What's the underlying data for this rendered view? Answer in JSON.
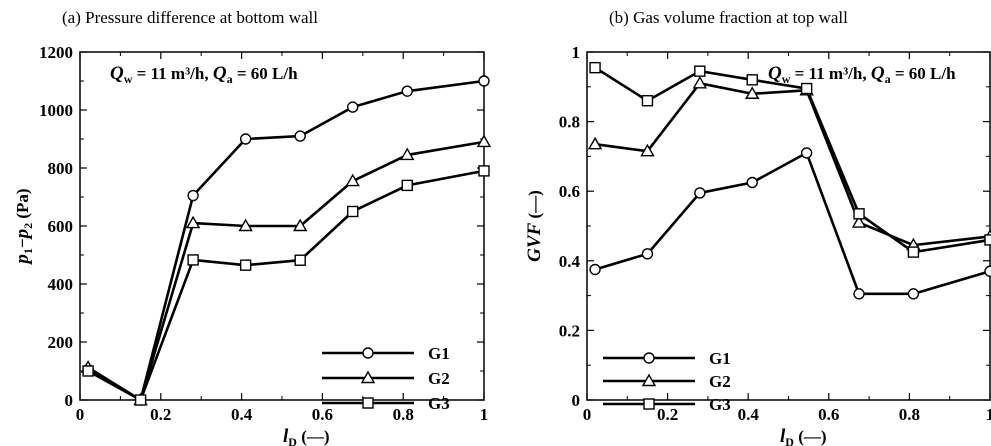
{
  "chart_data": [
    {
      "panel": "a",
      "type": "line",
      "title": "(a) Pressure difference at bottom wall",
      "annotation": {
        "q": "Q",
        "q_sub": "w",
        "q_rest": " = 11 m³/h, ",
        "q2": "Q",
        "q2_sub": "a",
        "q2_rest": " = 60 L/h"
      },
      "xlabel": {
        "main": "l",
        "sub": "D",
        "rest": " (—)"
      },
      "ylabel": {
        "p1": "p",
        "sub1": "1",
        "mid": "−",
        "p2": "p",
        "sub2": "2",
        "rest": " (Pa)"
      },
      "xlim": [
        0,
        1
      ],
      "ylim": [
        0,
        1200
      ],
      "xticks": [
        0,
        0.2,
        0.4,
        0.6,
        0.8,
        1
      ],
      "xtick_labels": [
        "0",
        "0.2",
        "0.4",
        "0.6",
        "0.8",
        "1"
      ],
      "yticks": [
        0,
        200,
        400,
        600,
        800,
        1000,
        1200
      ],
      "ytick_labels": [
        "0",
        "200",
        "400",
        "600",
        "800",
        "1000",
        "1200"
      ],
      "x": [
        0.02,
        0.15,
        0.28,
        0.41,
        0.545,
        0.675,
        0.81,
        1.0
      ],
      "series": [
        {
          "name": "G1",
          "marker": "circle",
          "values": [
            105,
            0,
            705,
            900,
            910,
            1010,
            1065,
            1100
          ]
        },
        {
          "name": "G2",
          "marker": "triangle",
          "values": [
            112,
            0,
            610,
            600,
            600,
            755,
            845,
            890
          ]
        },
        {
          "name": "G3",
          "marker": "square",
          "values": [
            100,
            0,
            483,
            465,
            482,
            650,
            740,
            790
          ]
        }
      ],
      "legend": "lower-right"
    },
    {
      "panel": "b",
      "type": "line",
      "title": "(b) Gas volume fraction at top wall",
      "annotation": {
        "q": "Q",
        "q_sub": "w",
        "q_rest": " = 11 m³/h, ",
        "q2": "Q",
        "q2_sub": "a",
        "q2_rest": " = 60 L/h"
      },
      "xlabel": {
        "main": "l",
        "sub": "D",
        "rest": " (—)"
      },
      "ylabel": {
        "main": "GVF",
        "rest": " (—)"
      },
      "xlim": [
        0,
        1
      ],
      "ylim": [
        0,
        1
      ],
      "xticks": [
        0,
        0.2,
        0.4,
        0.6,
        0.8,
        1
      ],
      "xtick_labels": [
        "0",
        "0.2",
        "0.4",
        "0.6",
        "0.8",
        "1"
      ],
      "yticks": [
        0,
        0.2,
        0.4,
        0.6,
        0.8,
        1
      ],
      "ytick_labels": [
        "0",
        "0.2",
        "0.4",
        "0.6",
        "0.8",
        "1"
      ],
      "x": [
        0.02,
        0.15,
        0.28,
        0.41,
        0.545,
        0.675,
        0.81,
        1.0
      ],
      "series": [
        {
          "name": "G1",
          "marker": "circle",
          "values": [
            0.375,
            0.42,
            0.595,
            0.625,
            0.71,
            0.305,
            0.305,
            0.37
          ]
        },
        {
          "name": "G2",
          "marker": "triangle",
          "values": [
            0.735,
            0.715,
            0.91,
            0.88,
            0.89,
            0.51,
            0.445,
            0.47
          ]
        },
        {
          "name": "G3",
          "marker": "square",
          "values": [
            0.955,
            0.86,
            0.945,
            0.92,
            0.895,
            0.535,
            0.425,
            0.46
          ]
        }
      ],
      "legend": "lower-left"
    }
  ]
}
